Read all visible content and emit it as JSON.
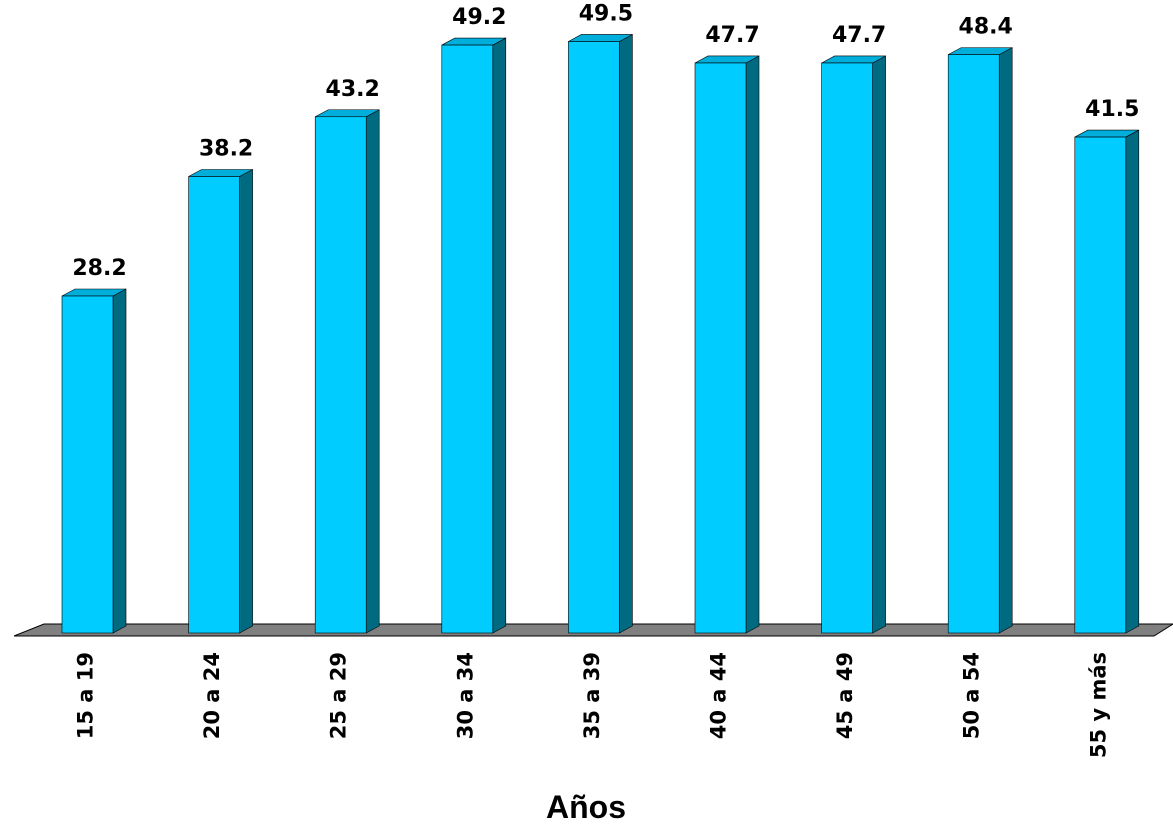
{
  "chart_data": {
    "type": "bar",
    "style": "3d-columns",
    "categories": [
      "15 a 19",
      "20 a 24",
      "25 a 29",
      "30 a 34",
      "35 a 39",
      "40 a 44",
      "45 a 49",
      "50 a 54",
      "55 y más"
    ],
    "values": [
      28.2,
      38.2,
      43.2,
      49.2,
      49.5,
      47.7,
      47.7,
      48.4,
      41.5
    ],
    "value_labels": [
      "28.2",
      "38.2",
      "43.2",
      "49.2",
      "49.5",
      "47.7",
      "47.7",
      "48.4",
      "41.5"
    ],
    "title": "",
    "xlabel": "Años",
    "ylabel": "",
    "ylim": [
      0,
      50
    ],
    "grid": false,
    "legend": "none",
    "colors": {
      "bar_front": "#00CCFF",
      "bar_side": "#006B80",
      "bar_top": "#00AEDB",
      "floor": "#808080",
      "outline": "#000000"
    }
  }
}
